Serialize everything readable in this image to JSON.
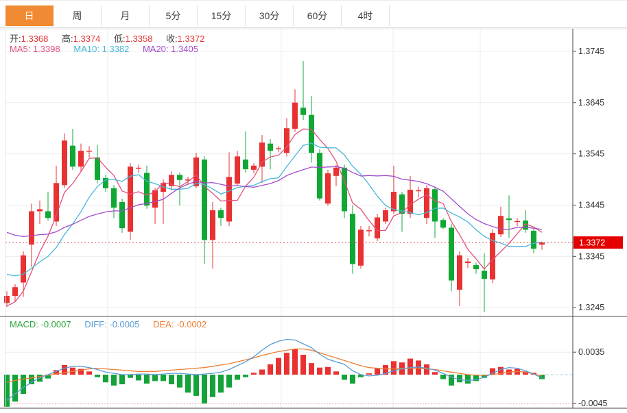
{
  "tabs": {
    "active_index": 0,
    "items": [
      {
        "label": "日"
      },
      {
        "label": "周"
      },
      {
        "label": "月"
      },
      {
        "label": "5分"
      },
      {
        "label": "15分"
      },
      {
        "label": "30分"
      },
      {
        "label": "60分"
      },
      {
        "label": "4时"
      }
    ]
  },
  "legend": {
    "ohlc": [
      {
        "label": "开:",
        "value": "1.3368"
      },
      {
        "label": "高:",
        "value": "1.3374"
      },
      {
        "label": "低:",
        "value": "1.3358"
      },
      {
        "label": "收:",
        "value": "1.3372"
      }
    ],
    "ma": [
      {
        "label": "MA5:",
        "value": "1.3398"
      },
      {
        "label": "MA10:",
        "value": "1.3382"
      },
      {
        "label": "MA20:",
        "value": "1.3405"
      }
    ],
    "macd": [
      {
        "label": "MACD:",
        "value": "-0.0007"
      },
      {
        "label": "DIFF:",
        "value": "-0.0005"
      },
      {
        "label": "DEA:",
        "value": "-0.0002"
      }
    ]
  },
  "colors": {
    "up": "#e83232",
    "down": "#0fa834",
    "ma5": "#e34f7b",
    "ma10": "#45b8d8",
    "ma20": "#a24bc8",
    "diff": "#5b9bd5",
    "dea": "#ed7d31",
    "hist_up": "#e83232",
    "hist_down": "#13a339",
    "active_tab": "#f08b33",
    "price_tag_bg": "#e50000",
    "price_tag_text": "#ffffff",
    "price_dotted_line": "#e05050",
    "zero_dash_line": "#9fd4e8",
    "axis_text": "#333333",
    "grid": "#ececec"
  },
  "chart_data": {
    "type": "candlestick+macd",
    "main": {
      "y_axis_labels": [
        1.3745,
        1.3645,
        1.3545,
        1.3445,
        1.3345,
        1.3245
      ],
      "last_price": 1.3372,
      "last_price_label": "1.3372",
      "ma_periods": [
        5,
        10,
        20
      ],
      "ma_seeds": {
        "ma5": 1.3248,
        "ma10": 1.331,
        "ma20": 1.3392
      },
      "candles": [
        [
          1.3254,
          1.3277,
          1.3246,
          1.3268
        ],
        [
          1.3268,
          1.3291,
          1.3257,
          1.3285
        ],
        [
          1.3294,
          1.3355,
          1.3266,
          1.3347
        ],
        [
          1.3368,
          1.3448,
          1.3324,
          1.3433
        ],
        [
          1.3433,
          1.3454,
          1.3408,
          1.3437
        ],
        [
          1.3433,
          1.3471,
          1.3415,
          1.342
        ],
        [
          1.3413,
          1.3522,
          1.3404,
          1.3488
        ],
        [
          1.3484,
          1.3585,
          1.3478,
          1.3571
        ],
        [
          1.3561,
          1.3594,
          1.3514,
          1.352
        ],
        [
          1.352,
          1.3565,
          1.3511,
          1.3551
        ],
        [
          1.355,
          1.356,
          1.3538,
          1.3551
        ],
        [
          1.3538,
          1.3562,
          1.3487,
          1.3494
        ],
        [
          1.3498,
          1.3504,
          1.3471,
          1.3478
        ],
        [
          1.3478,
          1.3484,
          1.342,
          1.344
        ],
        [
          1.3451,
          1.3458,
          1.3391,
          1.34
        ],
        [
          1.3393,
          1.3527,
          1.3377,
          1.352
        ],
        [
          1.3516,
          1.3524,
          1.3508,
          1.3518
        ],
        [
          1.3508,
          1.3522,
          1.3438,
          1.3444
        ],
        [
          1.344,
          1.3478,
          1.3408,
          1.3474
        ],
        [
          1.3471,
          1.3495,
          1.3408,
          1.3488
        ],
        [
          1.3482,
          1.3511,
          1.3474,
          1.3504
        ],
        [
          1.3504,
          1.3508,
          1.3444,
          1.3494
        ],
        [
          1.3493,
          1.35,
          1.3484,
          1.3495
        ],
        [
          1.3482,
          1.3547,
          1.3478,
          1.3538
        ],
        [
          1.3534,
          1.354,
          1.333,
          1.3377
        ],
        [
          1.3377,
          1.3451,
          1.3321,
          1.3435
        ],
        [
          1.3435,
          1.344,
          1.3404,
          1.342
        ],
        [
          1.3413,
          1.3548,
          1.3404,
          1.35
        ],
        [
          1.3487,
          1.3551,
          1.3482,
          1.354
        ],
        [
          1.3534,
          1.3589,
          1.3508,
          1.3515
        ],
        [
          1.3514,
          1.3527,
          1.3507,
          1.3522
        ],
        [
          1.352,
          1.3582,
          1.3488,
          1.3567
        ],
        [
          1.3565,
          1.3574,
          1.3515,
          1.3551
        ],
        [
          1.3554,
          1.356,
          1.3548,
          1.3556
        ],
        [
          1.3547,
          1.3615,
          1.354,
          1.3595
        ],
        [
          1.3594,
          1.3671,
          1.3588,
          1.3645
        ],
        [
          1.3635,
          1.3726,
          1.3611,
          1.3621
        ],
        [
          1.3621,
          1.3658,
          1.3528,
          1.3547
        ],
        [
          1.3547,
          1.3554,
          1.3454,
          1.3458
        ],
        [
          1.3448,
          1.3514,
          1.3444,
          1.3507
        ],
        [
          1.3502,
          1.3524,
          1.3482,
          1.3518
        ],
        [
          1.3518,
          1.3524,
          1.342,
          1.3433
        ],
        [
          1.3428,
          1.3445,
          1.3311,
          1.333
        ],
        [
          1.3327,
          1.3404,
          1.3321,
          1.3397
        ],
        [
          1.3394,
          1.3404,
          1.3384,
          1.3396
        ],
        [
          1.338,
          1.3428,
          1.3375,
          1.3421
        ],
        [
          1.3413,
          1.344,
          1.3408,
          1.3435
        ],
        [
          1.3433,
          1.3522,
          1.3428,
          1.3471
        ],
        [
          1.3466,
          1.3471,
          1.3393,
          1.3428
        ],
        [
          1.3428,
          1.3502,
          1.342,
          1.3475
        ],
        [
          1.3472,
          1.3481,
          1.346,
          1.3474
        ],
        [
          1.342,
          1.3484,
          1.3408,
          1.3478
        ],
        [
          1.3476,
          1.3481,
          1.3381,
          1.3413
        ],
        [
          1.3416,
          1.342,
          1.3398,
          1.3401
        ],
        [
          1.3401,
          1.3408,
          1.3277,
          1.3298
        ],
        [
          1.328,
          1.3355,
          1.3248,
          1.3347
        ],
        [
          1.3332,
          1.3342,
          1.3322,
          1.3335
        ],
        [
          1.3328,
          1.3333,
          1.3311,
          1.332
        ],
        [
          1.3317,
          1.3351,
          1.3236,
          1.3301
        ],
        [
          1.33,
          1.3398,
          1.3293,
          1.3391
        ],
        [
          1.3388,
          1.3442,
          1.3383,
          1.3424
        ],
        [
          1.3419,
          1.3464,
          1.3381,
          1.3416
        ],
        [
          1.3412,
          1.342,
          1.3404,
          1.3414
        ],
        [
          1.3415,
          1.3435,
          1.3391,
          1.3397
        ],
        [
          1.3395,
          1.34,
          1.3351,
          1.336
        ],
        [
          1.3368,
          1.3374,
          1.3358,
          1.3372
        ]
      ]
    },
    "macd": {
      "y_axis_labels": [
        0.0035,
        -0.0045
      ],
      "hist": [
        -0.005,
        -0.0042,
        -0.003,
        -0.0015,
        -0.0011,
        -0.0006,
        0.0007,
        0.0015,
        0.0011,
        0.0009,
        0.0005,
        -0.0004,
        -0.0012,
        -0.0017,
        -0.0015,
        -0.0005,
        -0.0009,
        -0.0014,
        -0.001,
        -0.001,
        -0.0015,
        -0.002,
        -0.0028,
        -0.0033,
        -0.0045,
        -0.0035,
        -0.0028,
        -0.002,
        -0.0008,
        -0.0004,
        0.0003,
        0.0008,
        0.0016,
        0.0026,
        0.0034,
        0.004,
        0.0031,
        0.0018,
        0.0011,
        0.0012,
        0.0005,
        -0.0008,
        -0.0014,
        -0.0004,
        0.0002,
        0.001,
        0.0015,
        0.0021,
        0.0019,
        0.0025,
        0.0022,
        0.0016,
        0.0004,
        -0.0007,
        -0.0017,
        -0.0012,
        -0.0014,
        -0.001,
        -0.0005,
        0.001,
        0.0012,
        0.0008,
        0.0009,
        0.0005,
        0.0003,
        -0.0007
      ],
      "diff": [
        -0.004,
        -0.003,
        -0.002,
        -0.0012,
        -0.0005,
        0.0,
        0.0005,
        0.001,
        0.0013,
        0.0013,
        0.0011,
        0.0008,
        0.0004,
        0.0002,
        0.0,
        0.0,
        0.0001,
        0.0001,
        0.0,
        0.0001,
        0.0002,
        0.0002,
        0.0001,
        0.0,
        0.0001,
        0.0002,
        0.0004,
        0.0008,
        0.0014,
        0.002,
        0.0028,
        0.0038,
        0.0047,
        0.0052,
        0.0055,
        0.0054,
        0.0048,
        0.0042,
        0.0032,
        0.0024,
        0.002,
        0.0016,
        0.0006,
        0.0,
        -0.0002,
        -0.0001,
        0.0002,
        0.0006,
        0.0009,
        0.0011,
        0.0012,
        0.001,
        0.0007,
        0.0002,
        -0.0004,
        -0.0008,
        -0.0009,
        -0.0008,
        -0.0004,
        0.0002,
        0.0008,
        0.0011,
        0.001,
        0.0006,
        0.0001,
        -0.0005
      ],
      "dea": [
        -0.0012,
        -0.0009,
        -0.0007,
        -0.0005,
        -0.0003,
        -0.0001,
        0.0001,
        0.0003,
        0.0005,
        0.0007,
        0.0009,
        0.001,
        0.0009,
        0.0008,
        0.0007,
        0.0006,
        0.0005,
        0.0005,
        0.0005,
        0.0006,
        0.0007,
        0.0008,
        0.0009,
        0.001,
        0.0011,
        0.0013,
        0.0015,
        0.0017,
        0.002,
        0.0023,
        0.0026,
        0.003,
        0.0033,
        0.0036,
        0.0038,
        0.004,
        0.004,
        0.0038,
        0.0034,
        0.003,
        0.0026,
        0.0022,
        0.0018,
        0.0014,
        0.0011,
        0.001,
        0.0009,
        0.0009,
        0.001,
        0.001,
        0.001,
        0.0009,
        0.0008,
        0.0006,
        0.0004,
        0.0002,
        0.0,
        -0.0001,
        -0.0001,
        0.0,
        0.0002,
        0.0004,
        0.0005,
        0.0004,
        0.0001,
        -0.0002
      ]
    }
  }
}
